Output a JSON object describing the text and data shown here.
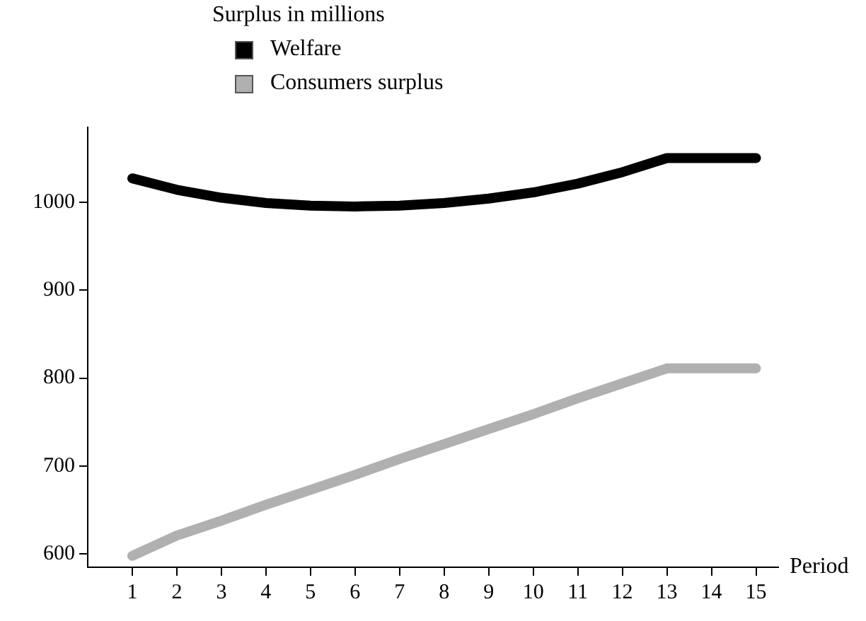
{
  "chart_data": {
    "type": "line",
    "legend_title": "Surplus in millions",
    "xlabel": "Period",
    "x": [
      1,
      2,
      3,
      4,
      5,
      6,
      7,
      8,
      9,
      10,
      11,
      12,
      13,
      14,
      15
    ],
    "series": [
      {
        "name": "Welfare",
        "color": "#000000",
        "values": [
          1027,
          1014,
          1005,
          999,
          996,
          995,
          996,
          999,
          1004,
          1011,
          1021,
          1034,
          1050,
          1050,
          1050
        ]
      },
      {
        "name": "Consumers surplus",
        "color": "#b0b0b0",
        "values": [
          598,
          621,
          638,
          656,
          673,
          690,
          708,
          725,
          742,
          759,
          777,
          794,
          811,
          811,
          811
        ]
      }
    ],
    "xlim": [
      0,
      15.5
    ],
    "xticks": [
      1,
      2,
      3,
      4,
      5,
      6,
      7,
      8,
      9,
      10,
      11,
      12,
      13,
      14,
      15
    ],
    "ylim": [
      585,
      1085
    ],
    "yticks": [
      600,
      700,
      800,
      900,
      1000
    ],
    "grid": false,
    "legend": "top left",
    "marker": "none",
    "line_style": "solid"
  }
}
